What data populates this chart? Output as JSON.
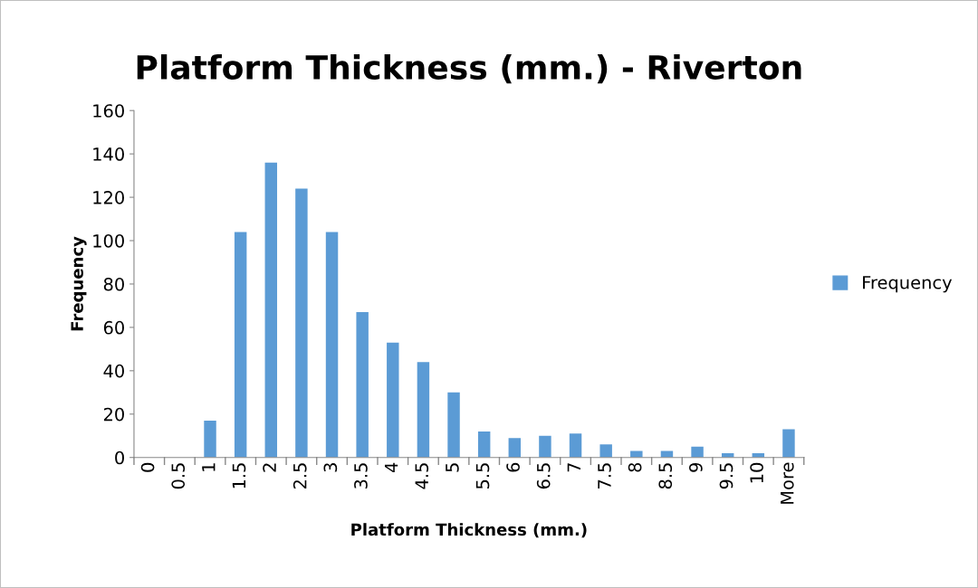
{
  "chart_data": {
    "type": "bar",
    "title": "Platform Thickness (mm.) - Riverton",
    "xlabel": "Platform Thickness (mm.)",
    "ylabel": "Frequency",
    "categories": [
      "0",
      "0.5",
      "1",
      "1.5",
      "2",
      "2.5",
      "3",
      "3.5",
      "4",
      "4.5",
      "5",
      "5.5",
      "6",
      "6.5",
      "7",
      "7.5",
      "8",
      "8.5",
      "9",
      "9.5",
      "10",
      "More"
    ],
    "series": [
      {
        "name": "Frequency",
        "color": "#5b9bd5",
        "values": [
          0,
          0,
          17,
          104,
          136,
          124,
          104,
          67,
          53,
          44,
          30,
          12,
          9,
          10,
          11,
          6,
          3,
          3,
          5,
          2,
          2,
          13
        ]
      }
    ],
    "ylim": [
      0,
      160
    ],
    "yticks": [
      0,
      20,
      40,
      60,
      80,
      100,
      120,
      140,
      160
    ],
    "grid": false,
    "legend": "right"
  }
}
